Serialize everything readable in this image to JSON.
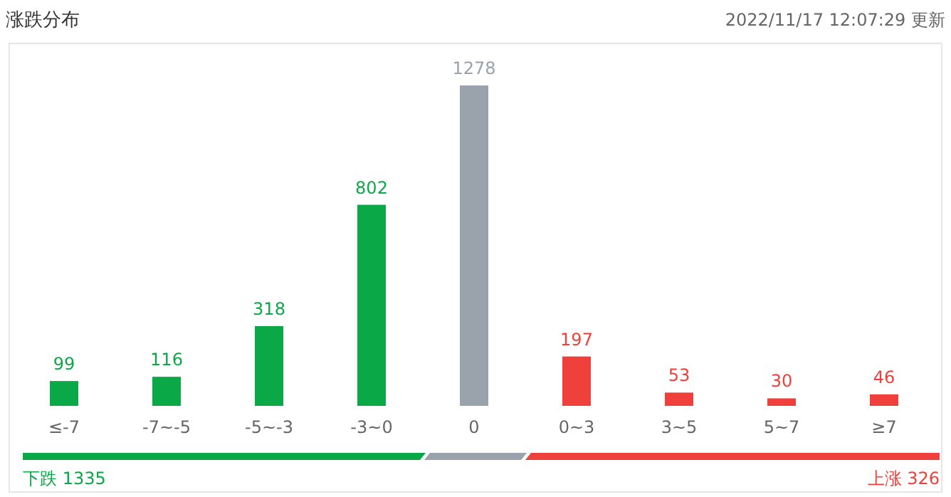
{
  "chart_data": {
    "type": "bar",
    "title": "涨跌分布",
    "categories": [
      "≤-7",
      "-7~-5",
      "-5~-3",
      "-3~0",
      "0",
      "0~3",
      "3~5",
      "5~7",
      "≥7"
    ],
    "values": [
      99,
      116,
      318,
      802,
      1278,
      197,
      53,
      30,
      46
    ],
    "colors": [
      "#0aa846",
      "#0aa846",
      "#0aa846",
      "#0aa846",
      "#9aa2ab",
      "#f0403c",
      "#f0403c",
      "#f0403c",
      "#f0403c"
    ],
    "data_labels": true,
    "annotations": [
      "2022/11/17 12:07:29  更新",
      "下跌 1335",
      "上涨 326"
    ]
  }
}
